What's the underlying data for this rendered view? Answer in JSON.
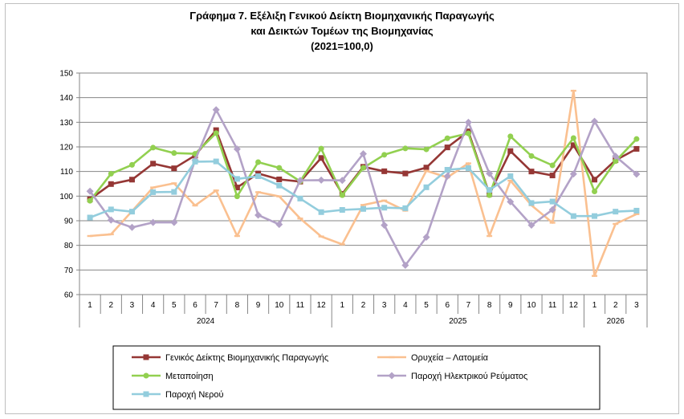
{
  "chart_data": {
    "type": "line",
    "title_lines": [
      "Γράφημα 7. Εξέλιξη Γενικού Δείκτη Βιομηχανικής Παραγωγής",
      "και Δεικτών Τομέων της Βιομηχανίας",
      "(2021=100,0)"
    ],
    "ylim": [
      60,
      150
    ],
    "yticks": [
      "60",
      "70",
      "80",
      "90",
      "100",
      "110",
      "120",
      "130",
      "140",
      "150"
    ],
    "months": [
      "1",
      "2",
      "3",
      "4",
      "5",
      "6",
      "7",
      "8",
      "9",
      "10",
      "11",
      "12",
      "1",
      "2",
      "3",
      "4",
      "5",
      "6",
      "7",
      "8",
      "9",
      "10",
      "11",
      "12",
      "1",
      "2",
      "3"
    ],
    "years": [
      {
        "label": "2024",
        "count": 12
      },
      {
        "label": "2025",
        "count": 12
      },
      {
        "label": "2026",
        "count": 3
      }
    ],
    "grid": "horizontal",
    "legend_position": "bottom",
    "series": [
      {
        "name": "Γενικός Δείκτης Βιομηχανικής Παραγωγής",
        "color": "#953735",
        "marker": "square",
        "values": [
          98.7,
          104.9,
          106.7,
          113.2,
          111.3,
          116.5,
          126.8,
          103.5,
          109.2,
          106.8,
          105.9,
          115.5,
          100.9,
          111.9,
          110.1,
          109.2,
          111.6,
          119.8,
          126.3,
          100.8,
          118.3,
          110.0,
          108.4,
          120.7,
          106.7,
          114.6,
          119.2
        ]
      },
      {
        "name": "Ορυχεία – Λατομεία",
        "color": "#fac090",
        "marker": "dash",
        "values": [
          83.8,
          84.5,
          93.9,
          103.5,
          105.2,
          96.2,
          102.3,
          83.8,
          101.6,
          99.9,
          90.9,
          83.6,
          80.4,
          96.4,
          98.2,
          94.1,
          110.3,
          107.6,
          113.3,
          83.8,
          106.3,
          96.3,
          89.2,
          142.8,
          67.6,
          88.7,
          92.7
        ]
      },
      {
        "name": "Μεταποίηση",
        "color": "#92d050",
        "marker": "circle",
        "values": [
          98.1,
          109.1,
          112.7,
          119.7,
          117.5,
          117.2,
          125.6,
          99.9,
          113.8,
          111.5,
          106.0,
          119.3,
          100.4,
          111.5,
          116.8,
          119.4,
          119.0,
          123.5,
          125.5,
          100.4,
          124.3,
          116.3,
          112.5,
          123.6,
          101.9,
          114.2,
          123.2
        ]
      },
      {
        "name": "Παροχή Ηλεκτρικού Ρεύματος",
        "color": "#b3a2c7",
        "marker": "diamond",
        "values": [
          102.0,
          90.3,
          87.3,
          89.3,
          89.3,
          114.6,
          135.1,
          119.1,
          92.3,
          88.5,
          106.4,
          106.5,
          106.4,
          117.2,
          88.2,
          71.9,
          83.3,
          108.1,
          130.0,
          109.2,
          97.7,
          88.2,
          94.5,
          109.0,
          130.4,
          116.2,
          108.9
        ]
      },
      {
        "name": "Παροχή Νερού",
        "color": "#93cddd",
        "marker": "square",
        "values": [
          91.3,
          94.6,
          93.7,
          101.6,
          101.7,
          114.0,
          114.1,
          107.0,
          108.1,
          104.3,
          99.0,
          93.5,
          94.4,
          94.8,
          95.3,
          95.1,
          103.6,
          110.7,
          111.4,
          102.5,
          108.1,
          97.2,
          97.8,
          91.9,
          91.9,
          93.7,
          94.1
        ]
      }
    ]
  }
}
